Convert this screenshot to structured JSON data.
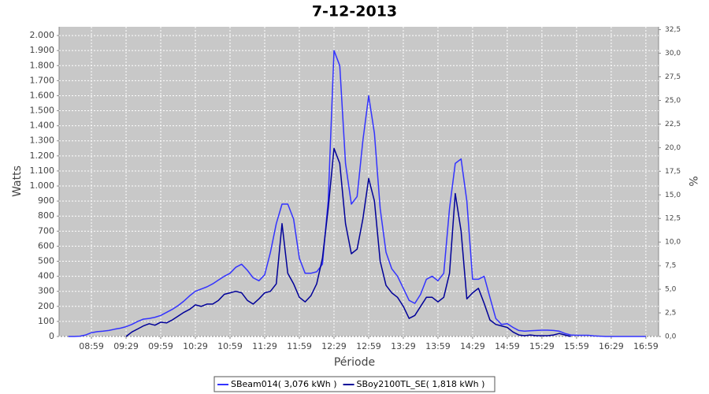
{
  "chart_data": {
    "type": "line",
    "title": "7-12-2013",
    "x_label": "Période",
    "y_label": "Watts",
    "y2_label": "%",
    "x": [
      "08:39",
      "08:44",
      "08:49",
      "08:54",
      "08:59",
      "09:04",
      "09:09",
      "09:14",
      "09:19",
      "09:24",
      "09:29",
      "09:34",
      "09:39",
      "09:44",
      "09:49",
      "09:54",
      "09:59",
      "10:04",
      "10:09",
      "10:14",
      "10:19",
      "10:24",
      "10:29",
      "10:34",
      "10:39",
      "10:44",
      "10:49",
      "10:54",
      "10:59",
      "11:04",
      "11:09",
      "11:14",
      "11:19",
      "11:24",
      "11:29",
      "11:34",
      "11:39",
      "11:44",
      "11:49",
      "11:54",
      "11:59",
      "12:04",
      "12:09",
      "12:14",
      "12:19",
      "12:24",
      "12:29",
      "12:34",
      "12:39",
      "12:44",
      "12:49",
      "12:54",
      "12:59",
      "13:04",
      "13:09",
      "13:14",
      "13:19",
      "13:24",
      "13:29",
      "13:34",
      "13:39",
      "13:44",
      "13:49",
      "13:54",
      "13:59",
      "14:04",
      "14:09",
      "14:14",
      "14:19",
      "14:24",
      "14:29",
      "14:34",
      "14:39",
      "14:44",
      "14:49",
      "14:54",
      "14:59",
      "15:04",
      "15:09",
      "15:14",
      "15:19",
      "15:24",
      "15:29",
      "15:34",
      "15:39",
      "15:44",
      "15:49",
      "15:54",
      "15:59",
      "16:04",
      "16:09",
      "16:14",
      "16:19",
      "16:24",
      "16:29",
      "16:34",
      "16:39",
      "16:44",
      "16:49",
      "16:54",
      "16:59"
    ],
    "series": [
      {
        "name": "SBeam014( 3,076 kWh )",
        "color": "#3333ff",
        "values": [
          0,
          0,
          2,
          10,
          25,
          32,
          35,
          40,
          48,
          55,
          65,
          80,
          100,
          115,
          120,
          128,
          140,
          160,
          180,
          205,
          235,
          270,
          300,
          315,
          330,
          350,
          375,
          400,
          420,
          460,
          480,
          440,
          390,
          370,
          410,
          560,
          750,
          880,
          880,
          780,
          520,
          420,
          420,
          430,
          480,
          900,
          1900,
          1800,
          1150,
          880,
          930,
          1300,
          1600,
          1350,
          850,
          560,
          450,
          400,
          320,
          240,
          220,
          280,
          380,
          400,
          370,
          420,
          850,
          1150,
          1180,
          900,
          380,
          380,
          400,
          260,
          120,
          80,
          85,
          60,
          40,
          35,
          38,
          40,
          42,
          42,
          40,
          35,
          20,
          10,
          8,
          8,
          8,
          4,
          2,
          0,
          0,
          0,
          0,
          0,
          0,
          0,
          0
        ]
      },
      {
        "name": "SBoy2100TL_SE( 1,818 kWh )",
        "color": "#000099",
        "values": [
          null,
          null,
          null,
          null,
          null,
          null,
          null,
          null,
          null,
          null,
          0,
          30,
          50,
          70,
          85,
          75,
          95,
          90,
          110,
          135,
          160,
          180,
          210,
          200,
          215,
          215,
          240,
          280,
          290,
          300,
          290,
          240,
          215,
          250,
          290,
          300,
          350,
          750,
          420,
          350,
          260,
          230,
          270,
          350,
          520,
          850,
          1250,
          1150,
          750,
          550,
          580,
          780,
          1050,
          900,
          500,
          340,
          290,
          260,
          200,
          120,
          140,
          200,
          260,
          260,
          230,
          260,
          420,
          950,
          700,
          250,
          290,
          320,
          220,
          110,
          80,
          70,
          60,
          30,
          10,
          5,
          10,
          5,
          5,
          5,
          10,
          20,
          10,
          0,
          null,
          null,
          null,
          null,
          null,
          null,
          null,
          null,
          null,
          null,
          null,
          null,
          null
        ]
      }
    ],
    "xlim": [
      "08:31",
      "17:10"
    ],
    "xticks": [
      "08:59",
      "09:29",
      "09:59",
      "10:29",
      "10:59",
      "11:29",
      "11:59",
      "12:29",
      "12:59",
      "13:29",
      "13:59",
      "14:29",
      "14:59",
      "15:29",
      "15:59",
      "16:29",
      "16:59"
    ],
    "ylim": [
      0,
      2058
    ],
    "yticks": [
      0,
      100,
      200,
      300,
      400,
      500,
      600,
      700,
      800,
      900,
      {
        "value": 1000,
        "label": "1.000"
      },
      {
        "value": 1100,
        "label": "1.100"
      },
      {
        "value": 1200,
        "label": "1.200"
      },
      {
        "value": 1300,
        "label": "1.300"
      },
      {
        "value": 1400,
        "label": "1.400"
      },
      {
        "value": 1500,
        "label": "1.500"
      },
      {
        "value": 1600,
        "label": "1.600"
      },
      {
        "value": 1700,
        "label": "1.700"
      },
      {
        "value": 1800,
        "label": "1.800"
      },
      {
        "value": 1900,
        "label": "1.900"
      },
      {
        "value": 2000,
        "label": "2.000"
      }
    ],
    "y2lim": [
      0,
      32.8
    ],
    "y2ticks": [
      {
        "value": 0,
        "label": "0,0"
      },
      {
        "value": 2.5,
        "label": "2,5"
      },
      {
        "value": 5,
        "label": "5,0"
      },
      {
        "value": 7.5,
        "label": "7,5"
      },
      {
        "value": 10,
        "label": "10,0"
      },
      {
        "value": 12.5,
        "label": "12,5"
      },
      {
        "value": 15,
        "label": "15,0"
      },
      {
        "value": 17.5,
        "label": "17,5"
      },
      {
        "value": 20,
        "label": "20,0"
      },
      {
        "value": 22.5,
        "label": "22,5"
      },
      {
        "value": 25,
        "label": "25,0"
      },
      {
        "value": 27.5,
        "label": "27,5"
      },
      {
        "value": 30,
        "label": "30,0"
      },
      {
        "value": 32.5,
        "label": "32,5"
      }
    ],
    "grid": true,
    "legend": "bottom"
  }
}
